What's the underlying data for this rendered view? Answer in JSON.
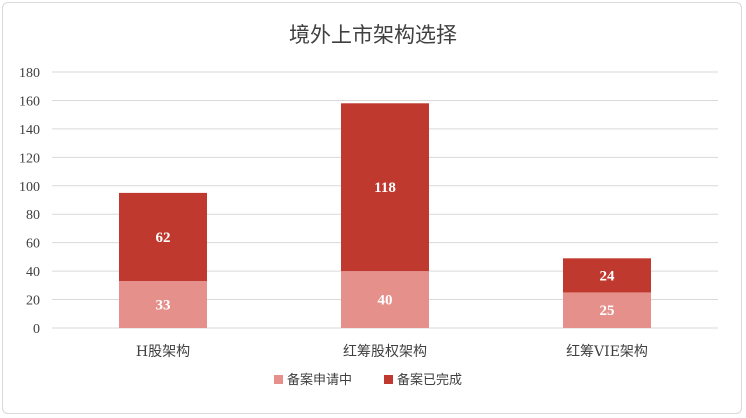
{
  "chart_data": {
    "type": "bar",
    "stacked": true,
    "title": "境外上市架构选择",
    "categories": [
      "H股架构",
      "红筹股权架构",
      "红筹VIE架构"
    ],
    "series": [
      {
        "name": "备案申请中",
        "values": [
          33,
          40,
          25
        ],
        "color": "#e6908c"
      },
      {
        "name": "备案已完成",
        "values": [
          62,
          118,
          24
        ],
        "color": "#c0392f"
      }
    ],
    "ylim": [
      0,
      180
    ],
    "yticks": [
      0,
      20,
      40,
      60,
      80,
      100,
      120,
      140,
      160,
      180
    ],
    "grid": true,
    "legend_position": "bottom"
  }
}
